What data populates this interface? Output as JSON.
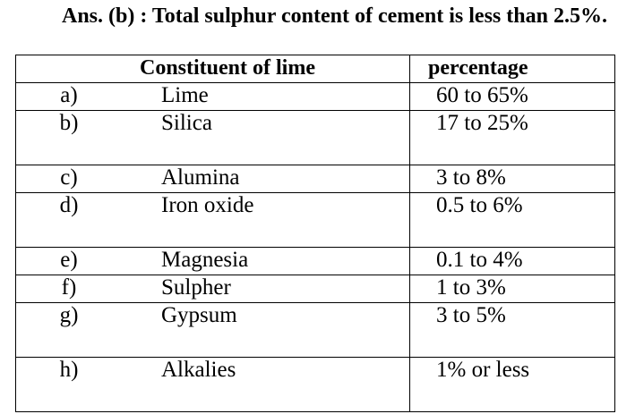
{
  "header": {
    "title": "Ans. (b) : Total sulphur content of cement is less than 2.5%."
  },
  "table": {
    "columns": [
      "Constituent of lime",
      "percentage"
    ],
    "rows": [
      [
        "a)",
        "Lime",
        "60 to 65%"
      ],
      [
        "b)",
        "Silica",
        "17 to 25%"
      ],
      [
        "c)",
        "Alumina",
        "3 to 8%"
      ],
      [
        "d)",
        "Iron oxide",
        "0.5 to 6%"
      ],
      [
        "e)",
        "Magnesia",
        "0.1 to 4%"
      ],
      [
        "f)",
        "Sulpher",
        "1 to 3%"
      ],
      [
        "g)",
        "Gypsum",
        "3 to 5%"
      ],
      [
        "h)",
        "Alkalies",
        "1% or less"
      ]
    ]
  }
}
